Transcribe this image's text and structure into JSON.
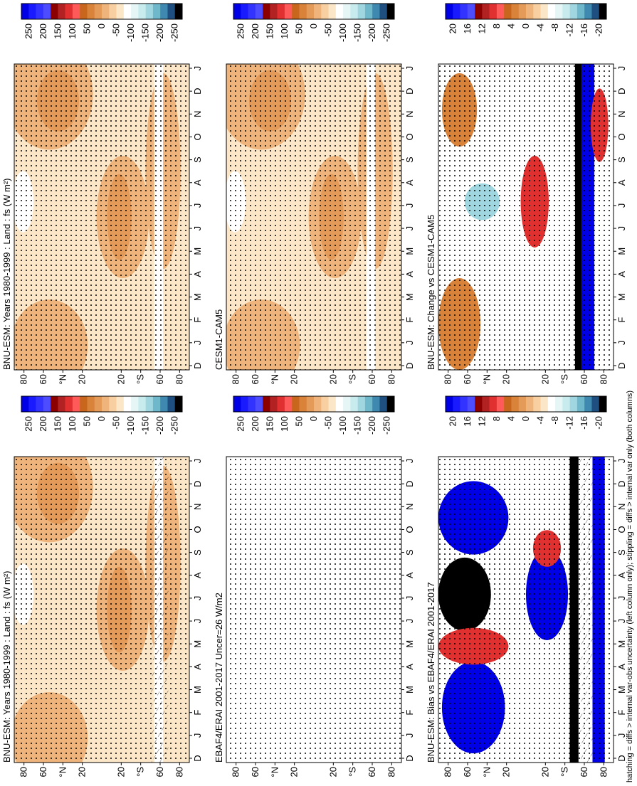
{
  "panels": [
    {
      "title": "BNU-ESM: Years 1980-1999 : Land : fs (W m²)",
      "colorbar_labels": [
        "250",
        "200",
        "150",
        "100",
        "50",
        "0",
        "-50",
        "-100",
        "-150",
        "-200",
        "-250"
      ],
      "months": [
        "D",
        "J",
        "F",
        "M",
        "A",
        "M",
        "J",
        "J",
        "A",
        "S",
        "O",
        "N",
        "D",
        "J"
      ],
      "latitudes": [
        "80",
        "60",
        "°N",
        "20",
        "20",
        "°S",
        "60",
        "80"
      ]
    },
    {
      "title": "CESM1-CAM5",
      "colorbar_labels": [
        "250",
        "200",
        "150",
        "100",
        "50",
        "0",
        "-50",
        "-100",
        "-150",
        "-200",
        "-250"
      ],
      "months": [
        "D",
        "J",
        "F",
        "M",
        "A",
        "M",
        "J",
        "J",
        "A",
        "S",
        "O",
        "N",
        "D",
        "J"
      ],
      "latitudes": [
        "80",
        "60",
        "°N",
        "20",
        "20",
        "°S",
        "60",
        "80"
      ]
    },
    {
      "title": "BNU-ESM: Change vs CESM1-CAM5",
      "colorbar_labels": [
        "20",
        "16",
        "12",
        "8",
        "4",
        "0",
        "-4",
        "-8",
        "-12",
        "-16",
        "-20"
      ],
      "months": [
        "D",
        "J",
        "F",
        "M",
        "A",
        "M",
        "J",
        "J",
        "A",
        "S",
        "O",
        "N",
        "D",
        "J"
      ],
      "latitudes": [
        "80",
        "60",
        "°N",
        "20",
        "20",
        "°S",
        "60",
        "80"
      ]
    },
    {
      "title": "BNU-ESM: Years 1980-1999 : Land : fs (W m²)",
      "colorbar_labels": [
        "250",
        "200",
        "150",
        "100",
        "50",
        "0",
        "-50",
        "-100",
        "-150",
        "-200",
        "-250"
      ],
      "months": [
        "D",
        "J",
        "F",
        "M",
        "A",
        "M",
        "J",
        "J",
        "A",
        "S",
        "O",
        "N",
        "D",
        "J"
      ],
      "latitudes": [
        "80",
        "60",
        "°N",
        "20",
        "20",
        "°S",
        "60",
        "80"
      ]
    },
    {
      "title": "EBAF4/ERAI 2001-2017 Uncer=26 W/m2",
      "colorbar_labels": [
        "250",
        "200",
        "150",
        "100",
        "50",
        "0",
        "-50",
        "-100",
        "-150",
        "-200",
        "-250"
      ],
      "months": [
        "D",
        "J",
        "F",
        "M",
        "A",
        "M",
        "J",
        "J",
        "A",
        "S",
        "O",
        "N",
        "D",
        "J"
      ],
      "latitudes": [
        "80",
        "60",
        "°N",
        "20",
        "20",
        "°S",
        "60",
        "80"
      ]
    },
    {
      "title": "BNU-ESM: Bias vs EBAF4/ERAI 2001-2017",
      "colorbar_labels": [
        "20",
        "16",
        "12",
        "8",
        "4",
        "0",
        "-4",
        "-8",
        "-12",
        "-16",
        "-20"
      ],
      "months": [
        "D",
        "J",
        "F",
        "M",
        "A",
        "M",
        "J",
        "J",
        "A",
        "S",
        "O",
        "N",
        "D",
        "J"
      ],
      "latitudes": [
        "80",
        "60",
        "°N",
        "20",
        "20",
        "°S",
        "60",
        "80"
      ]
    }
  ],
  "colorbar_colors": [
    "#0000e6",
    "#1a1aff",
    "#3333ff",
    "#4d4dff",
    "#8b0000",
    "#b22222",
    "#e03030",
    "#ff5a5a",
    "#c8661e",
    "#d8823a",
    "#e49a58",
    "#efb47c",
    "#f7cfa0",
    "#fbe6c8",
    "#ffffff",
    "#e6f6f6",
    "#c8ecee",
    "#9fd6df",
    "#6fb8cc",
    "#3f88b0",
    "#1f4f80",
    "#000000"
  ],
  "caption": "hatching = diffs > internal var-obs uncertainty (left column only); stippling = diffs > internal var only (both columns)"
}
